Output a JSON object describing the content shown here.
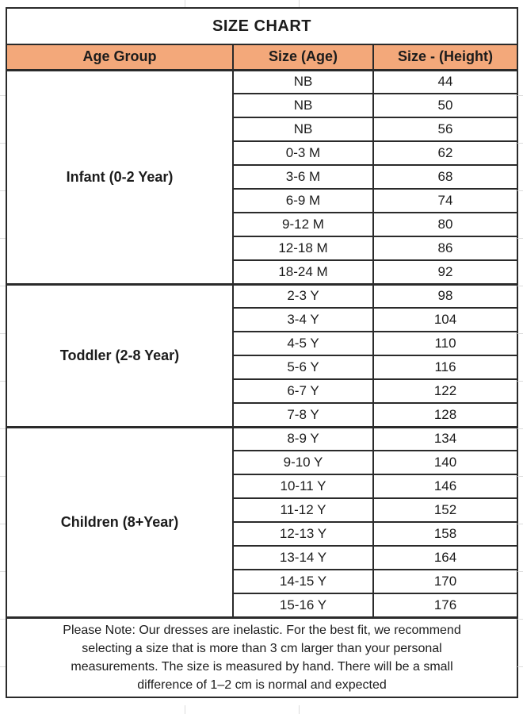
{
  "title": "SIZE CHART",
  "table": {
    "headers": [
      "Age Group",
      "Size (Age)",
      "Size - (Height)"
    ],
    "groups": [
      {
        "label": "Infant (0-2 Year)",
        "rows": [
          {
            "size": "NB",
            "height": "44"
          },
          {
            "size": "NB",
            "height": "50"
          },
          {
            "size": "NB",
            "height": "56"
          },
          {
            "size": "0-3 M",
            "height": "62"
          },
          {
            "size": "3-6 M",
            "height": "68"
          },
          {
            "size": "6-9 M",
            "height": "74"
          },
          {
            "size": "9-12 M",
            "height": "80"
          },
          {
            "size": "12-18 M",
            "height": "86"
          },
          {
            "size": "18-24 M",
            "height": "92"
          }
        ]
      },
      {
        "label": "Toddler (2-8 Year)",
        "rows": [
          {
            "size": "2-3 Y",
            "height": "98"
          },
          {
            "size": "3-4 Y",
            "height": "104"
          },
          {
            "size": "4-5 Y",
            "height": "110"
          },
          {
            "size": "5-6 Y",
            "height": "116"
          },
          {
            "size": "6-7 Y",
            "height": "122"
          },
          {
            "size": "7-8 Y",
            "height": "128"
          }
        ]
      },
      {
        "label": "Children (8+Year)",
        "rows": [
          {
            "size": "8-9 Y",
            "height": "134"
          },
          {
            "size": "9-10 Y",
            "height": "140"
          },
          {
            "size": "10-11 Y",
            "height": "146"
          },
          {
            "size": "11-12 Y",
            "height": "152"
          },
          {
            "size": "12-13 Y",
            "height": "158"
          },
          {
            "size": "13-14 Y",
            "height": "164"
          },
          {
            "size": "14-15 Y",
            "height": "170"
          },
          {
            "size": "15-16 Y",
            "height": "176"
          }
        ]
      }
    ]
  },
  "note": {
    "lines": [
      "Please Note: Our dresses are inelastic. For the best fit, we recommend",
      "selecting a size that is more than 3 cm larger than your personal",
      "measurements. The size is measured by hand. There will be a small",
      "difference of 1–2 cm is normal and expected"
    ]
  },
  "colors": {
    "header_bg": "#F3A87A",
    "border": "#2a2a2a",
    "text": "#1c1c1c",
    "gridline": "#dcdcdc"
  }
}
